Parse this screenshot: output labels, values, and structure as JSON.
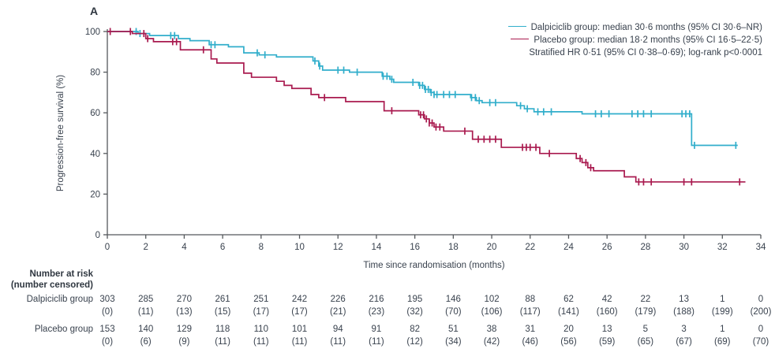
{
  "panel_label": "A",
  "legend": {
    "dalpiciclib_label": "Dalpiciclib group: median 30·6 months (95% CI 30·6–NR)",
    "placebo_label": "Placebo group: median 18·2 months (95% CI 16·5–22·5)",
    "stats_line": "Stratified HR 0·51 (95% CI 0·38–0·69); log-rank p<0·0001"
  },
  "chart_data": {
    "type": "line",
    "subtype": "kaplan-meier-step",
    "title": "",
    "xlabel": "Time since randomisation (months)",
    "ylabel": "Progression-free survival (%)",
    "xlim": [
      0,
      34
    ],
    "ylim": [
      0,
      100
    ],
    "x_ticks": [
      0,
      2,
      4,
      6,
      8,
      10,
      12,
      14,
      16,
      18,
      20,
      22,
      24,
      26,
      28,
      30,
      32,
      34
    ],
    "y_ticks": [
      0,
      20,
      40,
      60,
      80,
      100
    ],
    "grid": false,
    "legend_position": "top-right",
    "axis_color": "#55585C",
    "series": [
      {
        "name": "Dalpiciclib group",
        "color": "#31AECB",
        "median": "30·6 months",
        "ci": "30·6–NR",
        "end_x": 32.8,
        "steps": [
          [
            0,
            100
          ],
          [
            1.6,
            99
          ],
          [
            2.2,
            98
          ],
          [
            3.7,
            96.5
          ],
          [
            4.3,
            95.5
          ],
          [
            5.3,
            93.5
          ],
          [
            6.3,
            92.5
          ],
          [
            7.1,
            89.5
          ],
          [
            7.9,
            88.5
          ],
          [
            8.8,
            87.5
          ],
          [
            10.7,
            85.5
          ],
          [
            11.0,
            83
          ],
          [
            11.2,
            81
          ],
          [
            12.6,
            80
          ],
          [
            14.3,
            78
          ],
          [
            14.7,
            76.5
          ],
          [
            14.9,
            75
          ],
          [
            16.2,
            73.5
          ],
          [
            16.5,
            71.5
          ],
          [
            16.8,
            70
          ],
          [
            17.0,
            69
          ],
          [
            18.9,
            67.5
          ],
          [
            19.2,
            66
          ],
          [
            19.5,
            65
          ],
          [
            21.3,
            63.5
          ],
          [
            21.7,
            62
          ],
          [
            22.2,
            60.5
          ],
          [
            24.7,
            59.5
          ],
          [
            30.4,
            44
          ]
        ],
        "censor_x": [
          1.5,
          1.7,
          3.3,
          3.5,
          5.4,
          5.6,
          7.8,
          8.2,
          10.8,
          11.05,
          12.0,
          12.3,
          13.0,
          14.35,
          14.55,
          14.8,
          15.9,
          16.25,
          16.4,
          16.55,
          16.7,
          16.85,
          17.0,
          17.15,
          17.5,
          17.8,
          18.1,
          18.95,
          19.15,
          19.35,
          19.9,
          20.2,
          21.5,
          21.85,
          22.4,
          22.7,
          23.1,
          25.4,
          25.7,
          26.1,
          27.3,
          27.6,
          27.9,
          28.3,
          29.9,
          30.1,
          30.3,
          30.55,
          32.7
        ]
      },
      {
        "name": "Placebo group",
        "color": "#A91A4F",
        "median": "18·2 months",
        "ci": "16·5–22·5",
        "end_x": 33.2,
        "steps": [
          [
            0,
            100
          ],
          [
            1.3,
            99
          ],
          [
            2.0,
            96.5
          ],
          [
            2.4,
            95
          ],
          [
            3.8,
            91
          ],
          [
            5.4,
            86.5
          ],
          [
            5.7,
            84.5
          ],
          [
            7.1,
            79.5
          ],
          [
            7.5,
            77.5
          ],
          [
            8.8,
            75.5
          ],
          [
            9.2,
            73.5
          ],
          [
            9.6,
            72
          ],
          [
            10.6,
            69
          ],
          [
            11.0,
            67.5
          ],
          [
            12.4,
            65.5
          ],
          [
            14.4,
            61
          ],
          [
            16.2,
            59
          ],
          [
            16.5,
            57
          ],
          [
            16.75,
            55
          ],
          [
            17.0,
            53
          ],
          [
            17.5,
            51
          ],
          [
            19.0,
            47
          ],
          [
            20.5,
            43
          ],
          [
            22.5,
            40
          ],
          [
            24.4,
            37.5
          ],
          [
            24.7,
            35.5
          ],
          [
            25.0,
            33
          ],
          [
            25.3,
            31.5
          ],
          [
            26.9,
            28.5
          ],
          [
            27.5,
            26
          ]
        ],
        "censor_x": [
          0.15,
          1.2,
          1.9,
          2.1,
          3.4,
          3.6,
          5.0,
          11.3,
          14.8,
          16.3,
          16.45,
          16.6,
          16.75,
          16.9,
          17.1,
          17.3,
          18.6,
          19.3,
          19.6,
          19.9,
          20.2,
          21.6,
          21.8,
          22.0,
          22.3,
          23.0,
          24.6,
          24.9,
          25.15,
          27.65,
          27.9,
          28.3,
          30.0,
          30.4,
          32.9
        ]
      }
    ]
  },
  "risk_table": {
    "header_line1": "Number at risk",
    "header_line2": "(number censored)",
    "time_points": [
      0,
      2,
      4,
      6,
      8,
      10,
      12,
      14,
      16,
      18,
      20,
      22,
      24,
      26,
      28,
      30,
      32,
      34
    ],
    "rows": [
      {
        "label": "Dalpiciclib group",
        "at_risk": [
          303,
          285,
          270,
          261,
          251,
          242,
          226,
          216,
          195,
          146,
          102,
          88,
          62,
          42,
          22,
          13,
          1,
          0
        ],
        "censored": [
          0,
          11,
          13,
          15,
          17,
          17,
          21,
          23,
          32,
          70,
          106,
          117,
          141,
          160,
          179,
          188,
          199,
          200
        ]
      },
      {
        "label": "Placebo group",
        "at_risk": [
          153,
          140,
          129,
          118,
          110,
          101,
          94,
          91,
          82,
          51,
          38,
          31,
          20,
          13,
          5,
          3,
          1,
          0
        ],
        "censored": [
          0,
          6,
          9,
          11,
          11,
          11,
          11,
          11,
          12,
          34,
          42,
          46,
          56,
          59,
          65,
          67,
          69,
          70
        ]
      }
    ]
  }
}
